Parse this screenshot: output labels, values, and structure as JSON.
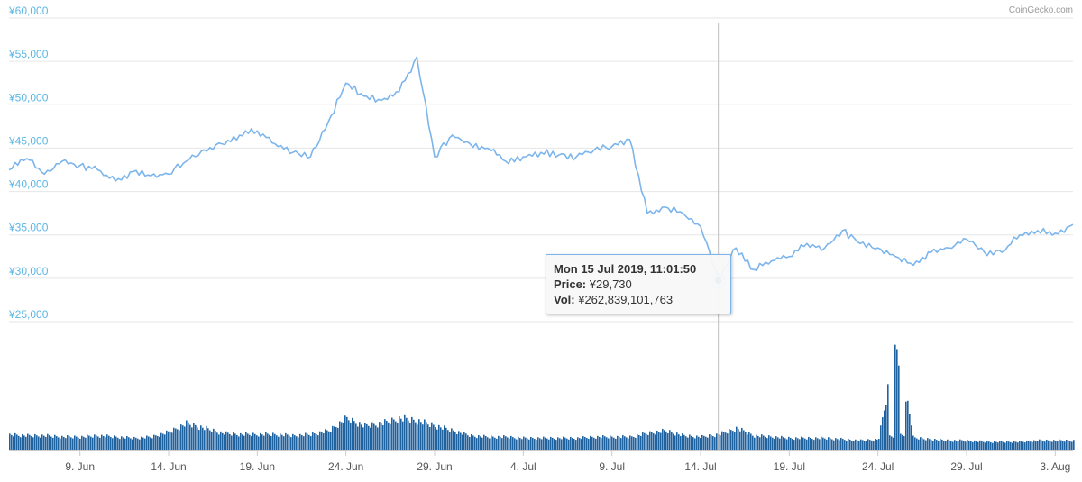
{
  "branding": {
    "credit": "CoinGecko.com"
  },
  "colors": {
    "price_line": "#7cb5ec",
    "volume_bar": "#1f62a0",
    "axis_text_y": "#5cb6e4",
    "grid": "#e6e6e6",
    "crosshair": "#c0c0c0"
  },
  "tooltip": {
    "date": "Mon 15 Jul 2019, 11:01:50",
    "price_label": "Price:",
    "price_value": "¥29,730",
    "vol_label": "Vol:",
    "vol_value": "¥262,839,101,763"
  },
  "chart_data": [
    {
      "type": "line",
      "title": "",
      "series": [
        {
          "name": "Price",
          "x": [
            "2019-06-05",
            "2019-06-06",
            "2019-06-07",
            "2019-06-08",
            "2019-06-09",
            "2019-06-10",
            "2019-06-11",
            "2019-06-12",
            "2019-06-13",
            "2019-06-14",
            "2019-06-15",
            "2019-06-16",
            "2019-06-17",
            "2019-06-18",
            "2019-06-19",
            "2019-06-20",
            "2019-06-21",
            "2019-06-22",
            "2019-06-23",
            "2019-06-24",
            "2019-06-25",
            "2019-06-26",
            "2019-06-27",
            "2019-06-28",
            "2019-06-29",
            "2019-06-30",
            "2019-07-01",
            "2019-07-02",
            "2019-07-03",
            "2019-07-04",
            "2019-07-05",
            "2019-07-06",
            "2019-07-07",
            "2019-07-08",
            "2019-07-09",
            "2019-07-10",
            "2019-07-11",
            "2019-07-12",
            "2019-07-13",
            "2019-07-14",
            "2019-07-15",
            "2019-07-16",
            "2019-07-17",
            "2019-07-18",
            "2019-07-19",
            "2019-07-20",
            "2019-07-21",
            "2019-07-22",
            "2019-07-23",
            "2019-07-24",
            "2019-07-25",
            "2019-07-26",
            "2019-07-27",
            "2019-07-28",
            "2019-07-29",
            "2019-07-30",
            "2019-07-31",
            "2019-08-01",
            "2019-08-02",
            "2019-08-03",
            "2019-08-04"
          ],
          "values": [
            42500,
            43800,
            42000,
            43500,
            43000,
            42500,
            41200,
            42300,
            41800,
            42000,
            43500,
            44800,
            45500,
            46500,
            47000,
            45500,
            44500,
            44000,
            48000,
            52500,
            51000,
            50500,
            51500,
            55500,
            44000,
            46500,
            45500,
            45000,
            43500,
            44000,
            44500,
            44200,
            44000,
            44800,
            45200,
            46000,
            37500,
            38200,
            37500,
            36000,
            29730,
            33500,
            31000,
            32000,
            32500,
            34000,
            33500,
            35500,
            34000,
            33500,
            32500,
            31500,
            33000,
            33500,
            34500,
            33000,
            33000,
            35000,
            35500,
            35200,
            36200
          ]
        }
      ],
      "ylim": [
        25000,
        60000
      ],
      "yticks": [
        "¥25,000",
        "¥30,000",
        "¥35,000",
        "¥40,000",
        "¥45,000",
        "¥50,000",
        "¥55,000",
        "¥60,000"
      ],
      "xticks": [
        "9. Jun",
        "14. Jun",
        "19. Jun",
        "24. Jun",
        "29. Jun",
        "4. Jul",
        "9. Jul",
        "14. Jul",
        "19. Jul",
        "24. Jul",
        "29. Jul",
        "3. Aug"
      ],
      "grid": true
    },
    {
      "type": "bar",
      "series": [
        {
          "name": "Vol",
          "x": [
            "2019-06-05",
            "2019-06-06",
            "2019-06-07",
            "2019-06-08",
            "2019-06-09",
            "2019-06-10",
            "2019-06-11",
            "2019-06-12",
            "2019-06-13",
            "2019-06-14",
            "2019-06-15",
            "2019-06-16",
            "2019-06-17",
            "2019-06-18",
            "2019-06-19",
            "2019-06-20",
            "2019-06-21",
            "2019-06-22",
            "2019-06-23",
            "2019-06-24",
            "2019-06-25",
            "2019-06-26",
            "2019-06-27",
            "2019-06-28",
            "2019-06-29",
            "2019-06-30",
            "2019-07-01",
            "2019-07-02",
            "2019-07-03",
            "2019-07-04",
            "2019-07-05",
            "2019-07-06",
            "2019-07-07",
            "2019-07-08",
            "2019-07-09",
            "2019-07-10",
            "2019-07-11",
            "2019-07-12",
            "2019-07-13",
            "2019-07-14",
            "2019-07-15",
            "2019-07-16",
            "2019-07-17",
            "2019-07-18",
            "2019-07-19",
            "2019-07-20",
            "2019-07-21",
            "2019-07-22",
            "2019-07-23",
            "2019-07-24",
            "2019-07-25",
            "2019-07-26",
            "2019-07-27",
            "2019-07-28",
            "2019-07-29",
            "2019-07-30",
            "2019-07-31",
            "2019-08-01",
            "2019-08-02",
            "2019-08-03",
            "2019-08-04"
          ],
          "values": [
            0.13,
            0.12,
            0.12,
            0.11,
            0.11,
            0.12,
            0.11,
            0.1,
            0.11,
            0.15,
            0.22,
            0.18,
            0.14,
            0.13,
            0.13,
            0.13,
            0.12,
            0.13,
            0.16,
            0.26,
            0.2,
            0.22,
            0.26,
            0.24,
            0.2,
            0.16,
            0.12,
            0.11,
            0.11,
            0.1,
            0.1,
            0.1,
            0.1,
            0.11,
            0.11,
            0.11,
            0.14,
            0.16,
            0.12,
            0.11,
            0.13,
            0.18,
            0.12,
            0.11,
            0.1,
            0.1,
            0.1,
            0.09,
            0.08,
            0.09,
            0.85,
            0.1,
            0.09,
            0.08,
            0.08,
            0.07,
            0.07,
            0.07,
            0.08,
            0.08,
            0.08
          ]
        }
      ]
    }
  ]
}
